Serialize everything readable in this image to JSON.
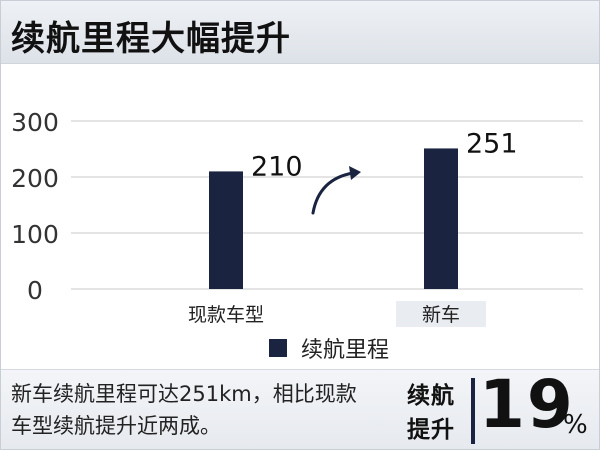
{
  "header": {
    "title": "续航里程大幅提升"
  },
  "chart_data": {
    "type": "bar",
    "categories": [
      "现款车型",
      "新车"
    ],
    "series": [
      {
        "name": "续航里程",
        "values": [
          210,
          251
        ]
      }
    ],
    "data_labels": [
      "210",
      "251"
    ],
    "ylim": [
      0,
      300
    ],
    "yticks": [
      0,
      100,
      200,
      300
    ],
    "ytick_labels": [
      "0",
      "100",
      "200",
      "300"
    ],
    "grid": true,
    "legend": "bottom",
    "bar_color": "#1a2440"
  },
  "footer": {
    "note_line1": "新车续航里程可达251km，相比现款",
    "note_line2": "车型续航提升近两成。",
    "stat_label_line1": "续航",
    "stat_label_line2": "提升",
    "stat_value": "19",
    "stat_unit": "%"
  }
}
